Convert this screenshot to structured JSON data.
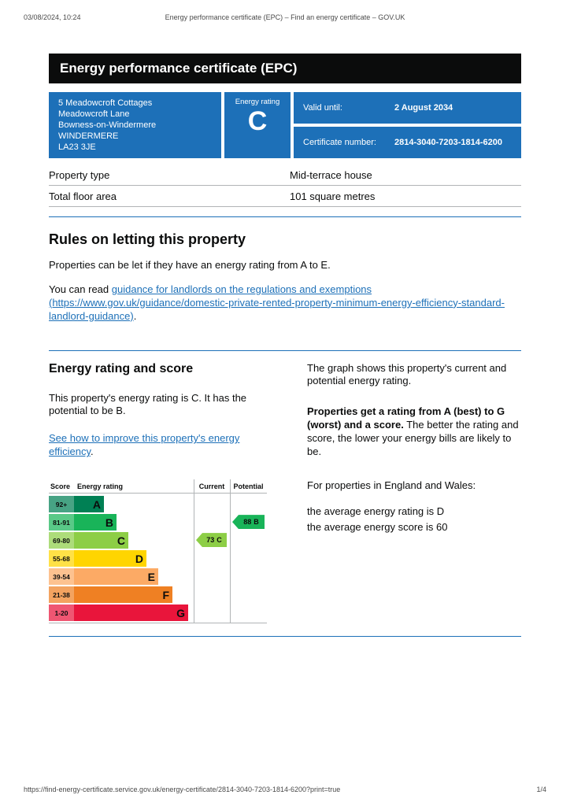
{
  "print_header": {
    "datetime": "03/08/2024, 10:24",
    "title": "Energy performance certificate (EPC) – Find an energy certificate – GOV.UK"
  },
  "banner": {
    "title": "Energy performance certificate (EPC)"
  },
  "summary": {
    "address_lines": [
      "5 Meadowcroft Cottages",
      "Meadowcroft Lane",
      "Bowness-on-Windermere",
      "WINDERMERE",
      "LA23 3JE"
    ],
    "rating_label": "Energy rating",
    "rating_value": "C",
    "valid_until_label": "Valid until:",
    "valid_until_value": "2 August 2034",
    "certificate_label": "Certificate number:",
    "certificate_value": "2814-3040-7203-1814-6200"
  },
  "property": {
    "rows": [
      {
        "label": "Property type",
        "value": "Mid-terrace house"
      },
      {
        "label": "Total floor area",
        "value": "101 square metres"
      }
    ]
  },
  "letting": {
    "heading": "Rules on letting this property",
    "intro": "Properties can be let if they have an energy rating from A to E.",
    "read_prefix": "You can read ",
    "link_text": "guidance for landlords on the regulations and exemptions (https://www.gov.uk/guidance/domestic-private-rented-property-minimum-energy-efficiency-standard-landlord-guidance)",
    "read_suffix": "."
  },
  "rating_section": {
    "heading": "Energy rating and score",
    "summary_text": "This property's energy rating is C. It has the potential to be B.",
    "improve_link": "See how to improve this property's energy efficiency",
    "improve_suffix": "."
  },
  "chart": {
    "headers": {
      "score": "Score",
      "rating": "Energy rating",
      "current": "Current",
      "potential": "Potential"
    },
    "bands": [
      {
        "range": "92+",
        "letter": "A",
        "color": "#008054"
      },
      {
        "range": "81-91",
        "letter": "B",
        "color": "#19b459"
      },
      {
        "range": "69-80",
        "letter": "C",
        "color": "#8dce46"
      },
      {
        "range": "55-68",
        "letter": "D",
        "color": "#ffd500"
      },
      {
        "range": "39-54",
        "letter": "E",
        "color": "#fcaa65"
      },
      {
        "range": "21-38",
        "letter": "F",
        "color": "#ef8023"
      },
      {
        "range": "1-20",
        "letter": "G",
        "color": "#e9153b"
      }
    ],
    "current": {
      "score": "73",
      "letter": "C"
    },
    "potential": {
      "score": "88",
      "letter": "B"
    }
  },
  "side_text": {
    "graph_intro": "The graph shows this property's current and potential energy rating.",
    "ratings_bold": "Properties get a rating from A (best) to G (worst) and a score.",
    "ratings_rest": " The better the rating and score, the lower your energy bills are likely to be.",
    "region_line": "For properties in England and Wales:",
    "avg_rating": "the average energy rating is D",
    "avg_score": "the average energy score is 60"
  },
  "footer": {
    "url": "https://find-energy-certificate.service.gov.uk/energy-certificate/2814-3040-7203-1814-6200?print=true",
    "page": "1/4"
  },
  "colors": {
    "govuk_blue": "#1d70b8",
    "banner_black": "#0b0c0c",
    "border_gray": "#b1b4b6",
    "link_blue": "#1d70b8"
  },
  "chart_data": {
    "type": "bar",
    "title": "Energy rating and score",
    "columns": [
      "Score",
      "Energy rating",
      "Current",
      "Potential"
    ],
    "categories": [
      "A",
      "B",
      "C",
      "D",
      "E",
      "F",
      "G"
    ],
    "score_ranges": [
      "92+",
      "81-91",
      "69-80",
      "55-68",
      "39-54",
      "21-38",
      "1-20"
    ],
    "band_colors": [
      "#008054",
      "#19b459",
      "#8dce46",
      "#ffd500",
      "#fcaa65",
      "#ef8023",
      "#e9153b"
    ],
    "current": {
      "score": 73,
      "rating": "C"
    },
    "potential": {
      "score": 88,
      "rating": "B"
    }
  }
}
